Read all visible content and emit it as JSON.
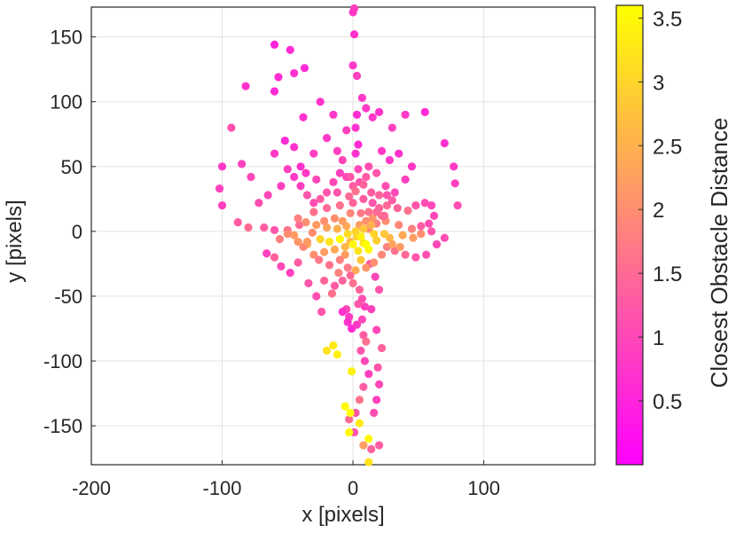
{
  "chart_data": {
    "type": "scatter",
    "xlabel": "x [pixels]",
    "ylabel": "y [pixels]",
    "xlim": [
      -200,
      185
    ],
    "ylim": [
      -180,
      173
    ],
    "xticks": [
      -200,
      -100,
      0,
      100
    ],
    "yticks": [
      -150,
      -100,
      -50,
      0,
      50,
      100,
      150
    ],
    "grid": true,
    "colorbar": {
      "label": "Closest Obstacle Distance",
      "range": [
        0.0,
        3.6
      ],
      "ticks": [
        0.5,
        1,
        1.5,
        2,
        2.5,
        3,
        3.5
      ],
      "colormap": "spring",
      "color_low": "#ff00ff",
      "color_high": "#ffff00"
    },
    "points": [
      [
        1,
        172,
        0.9
      ],
      [
        0,
        169,
        0.8
      ],
      [
        1,
        152,
        0.7
      ],
      [
        0,
        128,
        0.8
      ],
      [
        3,
        120,
        0.9
      ],
      [
        7,
        103,
        0.8
      ],
      [
        3,
        90,
        0.6
      ],
      [
        2,
        80,
        0.7
      ],
      [
        4,
        67,
        0.6
      ],
      [
        2,
        60,
        0.7
      ],
      [
        -60,
        144,
        0.5
      ],
      [
        -48,
        140,
        0.6
      ],
      [
        -45,
        122,
        0.7
      ],
      [
        -37,
        126,
        0.6
      ],
      [
        -57,
        119,
        0.6
      ],
      [
        -60,
        108,
        0.6
      ],
      [
        -82,
        112,
        0.7
      ],
      [
        -93,
        80,
        1.1
      ],
      [
        -100,
        50,
        0.8
      ],
      [
        -102,
        33,
        0.9
      ],
      [
        -100,
        20,
        0.9
      ],
      [
        -88,
        7,
        1.3
      ],
      [
        -80,
        3,
        1.5
      ],
      [
        -68,
        3,
        1.3
      ],
      [
        -60,
        1,
        1.2
      ],
      [
        -50,
        1,
        1.6
      ],
      [
        -41,
        5,
        1.5
      ],
      [
        -31,
        -1,
        2.0
      ],
      [
        -45,
        -3,
        2.2
      ],
      [
        -35,
        -10,
        2.4
      ],
      [
        -60,
        -20,
        1.4
      ],
      [
        -66,
        -17,
        0.9
      ],
      [
        -55,
        -27,
        1.0
      ],
      [
        -48,
        -32,
        0.9
      ],
      [
        -42,
        -24,
        1.3
      ],
      [
        -34,
        -40,
        1.2
      ],
      [
        -28,
        -50,
        1.1
      ],
      [
        -24,
        -62,
        1.2
      ],
      [
        -22,
        -38,
        1.4
      ],
      [
        -16,
        -48,
        1.6
      ],
      [
        -11,
        -32,
        1.8
      ],
      [
        -6,
        -18,
        2.2
      ],
      [
        -2,
        -8,
        2.6
      ],
      [
        3,
        -4,
        3.0
      ],
      [
        8,
        -9,
        3.2
      ],
      [
        12,
        -14,
        3.5
      ],
      [
        6,
        -22,
        2.8
      ],
      [
        2,
        -30,
        2.4
      ],
      [
        0,
        -40,
        1.6
      ],
      [
        5,
        -45,
        1.4
      ],
      [
        7,
        -52,
        1.1
      ],
      [
        9,
        -58,
        0.9
      ],
      [
        4,
        -56,
        1.2
      ],
      [
        -5,
        -60,
        1.0
      ],
      [
        -3,
        -66,
        0.8
      ],
      [
        -8,
        -62,
        0.7
      ],
      [
        -4,
        -70,
        0.7
      ],
      [
        -1,
        -75,
        0.6
      ],
      [
        3,
        -72,
        0.8
      ],
      [
        7,
        -68,
        1.0
      ],
      [
        8,
        -80,
        1.3
      ],
      [
        10,
        -85,
        1.6
      ],
      [
        6,
        -92,
        1.2
      ],
      [
        9,
        -100,
        1.0
      ],
      [
        12,
        -110,
        0.9
      ],
      [
        8,
        -120,
        1.3
      ],
      [
        5,
        -130,
        1.6
      ],
      [
        2,
        -140,
        1.2
      ],
      [
        -3,
        -145,
        1.5
      ],
      [
        1,
        -155,
        1.2
      ],
      [
        8,
        -165,
        2.2
      ],
      [
        14,
        -168,
        1.4
      ],
      [
        20,
        -165,
        1.3
      ],
      [
        12,
        -178,
        3.2
      ],
      [
        16,
        -140,
        1.1
      ],
      [
        18,
        -130,
        0.9
      ],
      [
        20,
        -118,
        1.0
      ],
      [
        19,
        -105,
        1.2
      ],
      [
        22,
        -90,
        1.4
      ],
      [
        18,
        -76,
        1.0
      ],
      [
        14,
        -60,
        0.9
      ],
      [
        20,
        -45,
        1.2
      ],
      [
        17,
        -35,
        1.0
      ],
      [
        13,
        -25,
        1.3
      ],
      [
        -12,
        -95,
        3.4
      ],
      [
        -6,
        -135,
        3.5
      ],
      [
        -2,
        -140,
        3.6
      ],
      [
        -3,
        -155,
        3.5
      ],
      [
        -1,
        -108,
        3.4
      ],
      [
        5,
        -148,
        3.3
      ],
      [
        12,
        -160,
        3.5
      ],
      [
        -15,
        -88,
        3.3
      ],
      [
        -20,
        -92,
        3.2
      ],
      [
        10,
        -10,
        3.6
      ],
      [
        0,
        -10,
        3.5
      ],
      [
        6,
        -4,
        3.4
      ],
      [
        -10,
        -6,
        3.5
      ],
      [
        -18,
        -8,
        3.2
      ],
      [
        -25,
        -6,
        3.0
      ],
      [
        18,
        -7,
        2.9
      ],
      [
        28,
        -5,
        2.6
      ],
      [
        38,
        -3,
        2.4
      ],
      [
        46,
        -5,
        2.2
      ],
      [
        52,
        -2,
        2.0
      ],
      [
        45,
        2,
        1.8
      ],
      [
        35,
        5,
        1.9
      ],
      [
        25,
        8,
        2.0
      ],
      [
        15,
        10,
        2.1
      ],
      [
        10,
        8,
        2.0
      ],
      [
        5,
        5,
        2.2
      ],
      [
        -5,
        4,
        2.4
      ],
      [
        -12,
        2,
        2.5
      ],
      [
        -20,
        3,
        2.3
      ],
      [
        -28,
        5,
        2.2
      ],
      [
        -36,
        7,
        2.0
      ],
      [
        -42,
        10,
        1.8
      ],
      [
        -30,
        15,
        1.6
      ],
      [
        -20,
        18,
        1.5
      ],
      [
        -10,
        20,
        1.6
      ],
      [
        0,
        22,
        1.4
      ],
      [
        8,
        25,
        1.3
      ],
      [
        15,
        22,
        1.2
      ],
      [
        20,
        18,
        1.4
      ],
      [
        22,
        12,
        1.6
      ],
      [
        18,
        6,
        1.8
      ],
      [
        12,
        2,
        2.0
      ],
      [
        26,
        20,
        1.5
      ],
      [
        34,
        18,
        1.4
      ],
      [
        42,
        16,
        1.6
      ],
      [
        48,
        20,
        1.2
      ],
      [
        55,
        22,
        1.1
      ],
      [
        60,
        20,
        1.0
      ],
      [
        62,
        12,
        1.0
      ],
      [
        58,
        6,
        1.1
      ],
      [
        52,
        4,
        1.3
      ],
      [
        60,
        0,
        1.2
      ],
      [
        70,
        -5,
        1.1
      ],
      [
        64,
        -10,
        1.0
      ],
      [
        56,
        -18,
        1.1
      ],
      [
        48,
        -20,
        1.2
      ],
      [
        40,
        -18,
        1.5
      ],
      [
        32,
        -15,
        1.6
      ],
      [
        26,
        -12,
        1.8
      ],
      [
        22,
        -18,
        1.9
      ],
      [
        16,
        -24,
        2.0
      ],
      [
        10,
        -28,
        2.1
      ],
      [
        -6,
        -12,
        2.6
      ],
      [
        -14,
        -14,
        2.4
      ],
      [
        -22,
        -16,
        2.2
      ],
      [
        -30,
        -18,
        2.0
      ],
      [
        -38,
        -12,
        1.9
      ],
      [
        -26,
        -22,
        1.7
      ],
      [
        -18,
        -26,
        1.6
      ],
      [
        -10,
        -22,
        1.8
      ],
      [
        -4,
        -28,
        1.7
      ],
      [
        -2,
        -34,
        1.5
      ],
      [
        -8,
        -38,
        1.4
      ],
      [
        -14,
        -42,
        1.3
      ],
      [
        77,
        50,
        0.8
      ],
      [
        78,
        37,
        0.9
      ],
      [
        80,
        20,
        1.1
      ],
      [
        70,
        68,
        0.7
      ],
      [
        55,
        92,
        0.6
      ],
      [
        40,
        90,
        0.8
      ],
      [
        30,
        80,
        0.9
      ],
      [
        20,
        92,
        0.7
      ],
      [
        10,
        95,
        0.8
      ],
      [
        15,
        88,
        0.8
      ],
      [
        35,
        60,
        0.7
      ],
      [
        45,
        50,
        0.8
      ],
      [
        40,
        40,
        0.9
      ],
      [
        32,
        30,
        1.0
      ],
      [
        25,
        35,
        1.1
      ],
      [
        18,
        45,
        1.2
      ],
      [
        10,
        42,
        1.3
      ],
      [
        5,
        38,
        1.2
      ],
      [
        0,
        35,
        1.3
      ],
      [
        -5,
        42,
        1.0
      ],
      [
        -10,
        45,
        0.9
      ],
      [
        -15,
        38,
        1.0
      ],
      [
        -20,
        30,
        1.2
      ],
      [
        -25,
        25,
        1.3
      ],
      [
        -30,
        22,
        1.1
      ],
      [
        -35,
        28,
        1.2
      ],
      [
        -40,
        35,
        0.9
      ],
      [
        -45,
        42,
        0.8
      ],
      [
        -50,
        48,
        0.9
      ],
      [
        -40,
        50,
        0.7
      ],
      [
        -52,
        70,
        0.6
      ],
      [
        -38,
        88,
        0.7
      ],
      [
        -25,
        100,
        0.7
      ],
      [
        -15,
        90,
        0.8
      ],
      [
        -5,
        78,
        0.9
      ],
      [
        -20,
        72,
        0.8
      ],
      [
        -30,
        60,
        0.9
      ],
      [
        -55,
        35,
        0.9
      ],
      [
        -65,
        28,
        1.0
      ],
      [
        -72,
        22,
        1.1
      ],
      [
        -78,
        42,
        1.0
      ],
      [
        -85,
        52,
        0.9
      ],
      [
        -60,
        60,
        0.8
      ],
      [
        -45,
        65,
        0.7
      ],
      [
        -36,
        45,
        0.8
      ],
      [
        -28,
        40,
        1.0
      ],
      [
        -12,
        30,
        1.2
      ],
      [
        -3,
        27,
        1.5
      ],
      [
        2,
        31,
        1.6
      ],
      [
        8,
        36,
        1.4
      ],
      [
        14,
        30,
        1.3
      ],
      [
        20,
        28,
        1.4
      ],
      [
        26,
        28,
        1.2
      ],
      [
        30,
        24,
        1.3
      ],
      [
        -35,
        -8,
        2.2
      ],
      [
        -42,
        -8,
        2.1
      ],
      [
        -50,
        -2,
        2.0
      ],
      [
        -56,
        -6,
        1.8
      ],
      [
        30,
        -10,
        2.3
      ],
      [
        36,
        -12,
        2.2
      ],
      [
        24,
        -2,
        2.8
      ],
      [
        16,
        -2,
        3.0
      ],
      [
        4,
        -15,
        3.2
      ],
      [
        -4,
        -2,
        3.1
      ],
      [
        2,
        0,
        3.0
      ],
      [
        8,
        2,
        2.8
      ],
      [
        14,
        5,
        2.5
      ],
      [
        -8,
        8,
        2.2
      ],
      [
        -14,
        10,
        2.0
      ],
      [
        -2,
        14,
        1.9
      ],
      [
        6,
        14,
        1.7
      ],
      [
        12,
        15,
        1.6
      ],
      [
        18,
        15,
        1.5
      ],
      [
        24,
        12,
        1.5
      ],
      [
        -22,
        8,
        2.0
      ],
      [
        -2,
        42,
        1.2
      ],
      [
        4,
        48,
        1.0
      ],
      [
        12,
        50,
        1.1
      ],
      [
        -8,
        55,
        1.0
      ],
      [
        -12,
        62,
        0.9
      ],
      [
        28,
        55,
        0.8
      ],
      [
        22,
        62,
        0.8
      ]
    ]
  }
}
